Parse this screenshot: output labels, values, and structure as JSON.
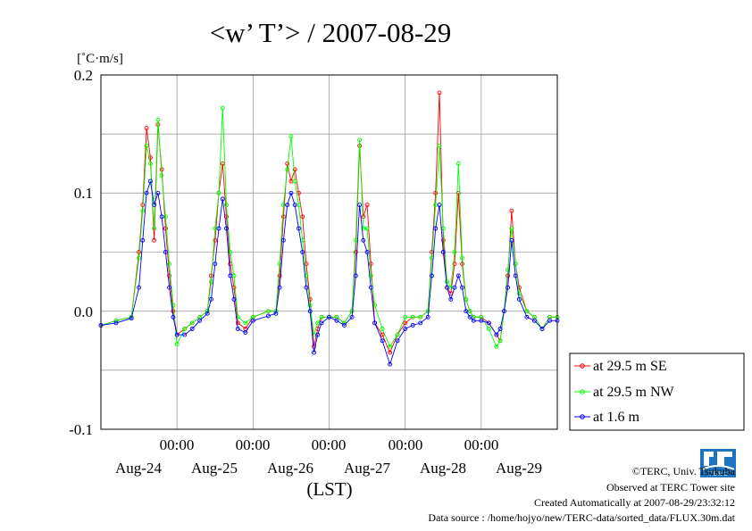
{
  "chart_data": {
    "type": "line",
    "title": "<w’ T’> / 2007-08-29",
    "unit_label": "[˚C·m/s]",
    "xlabel": "(LST)",
    "ylim": [
      -0.1,
      0.2
    ],
    "y_ticks": [
      "0.2",
      "0.1",
      "0.0",
      "-0.1"
    ],
    "y_tick_values": [
      0.2,
      0.1,
      0.0,
      -0.1
    ],
    "x_time_labels": [
      "00:00",
      "00:00",
      "00:00",
      "00:00",
      "00:00"
    ],
    "x_date_labels": [
      "Aug-24",
      "Aug-25",
      "Aug-26",
      "Aug-27",
      "Aug-28",
      "Aug-29"
    ],
    "x_range_days": [
      23.0,
      29.0
    ],
    "grid": true,
    "legend_position": "right",
    "series": [
      {
        "name": "at 29.5 m SE",
        "color": "#ff0000",
        "points": [
          [
            23.0,
            -0.012
          ],
          [
            23.2,
            -0.008
          ],
          [
            23.4,
            -0.005
          ],
          [
            23.5,
            0.05
          ],
          [
            23.55,
            0.09
          ],
          [
            23.6,
            0.155
          ],
          [
            23.65,
            0.13
          ],
          [
            23.7,
            0.06
          ],
          [
            23.75,
            0.158
          ],
          [
            23.8,
            0.12
          ],
          [
            23.85,
            0.07
          ],
          [
            23.9,
            0.03
          ],
          [
            23.95,
            0.0
          ],
          [
            24.0,
            -0.02
          ],
          [
            24.1,
            -0.015
          ],
          [
            24.2,
            -0.01
          ],
          [
            24.3,
            -0.005
          ],
          [
            24.4,
            0.0
          ],
          [
            24.45,
            0.03
          ],
          [
            24.5,
            0.06
          ],
          [
            24.55,
            0.1
          ],
          [
            24.6,
            0.125
          ],
          [
            24.65,
            0.08
          ],
          [
            24.7,
            0.04
          ],
          [
            24.75,
            0.02
          ],
          [
            24.8,
            -0.01
          ],
          [
            24.9,
            -0.015
          ],
          [
            25.0,
            -0.005
          ],
          [
            25.2,
            0.0
          ],
          [
            25.3,
            0.0
          ],
          [
            25.35,
            0.03
          ],
          [
            25.4,
            0.08
          ],
          [
            25.45,
            0.125
          ],
          [
            25.5,
            0.11
          ],
          [
            25.55,
            0.12
          ],
          [
            25.6,
            0.1
          ],
          [
            25.65,
            0.08
          ],
          [
            25.7,
            0.04
          ],
          [
            25.75,
            0.01
          ],
          [
            25.8,
            -0.03
          ],
          [
            25.85,
            -0.015
          ],
          [
            25.9,
            -0.005
          ],
          [
            26.0,
            -0.005
          ],
          [
            26.1,
            -0.005
          ],
          [
            26.2,
            -0.01
          ],
          [
            26.3,
            0.0
          ],
          [
            26.35,
            0.05
          ],
          [
            26.4,
            0.14
          ],
          [
            26.45,
            0.08
          ],
          [
            26.5,
            0.09
          ],
          [
            26.55,
            0.04
          ],
          [
            26.6,
            -0.01
          ],
          [
            26.7,
            -0.02
          ],
          [
            26.8,
            -0.035
          ],
          [
            26.9,
            -0.02
          ],
          [
            27.0,
            -0.01
          ],
          [
            27.1,
            -0.005
          ],
          [
            27.2,
            -0.005
          ],
          [
            27.3,
            0.0
          ],
          [
            27.35,
            0.05
          ],
          [
            27.4,
            0.1
          ],
          [
            27.45,
            0.185
          ],
          [
            27.5,
            0.06
          ],
          [
            27.55,
            0.02
          ],
          [
            27.6,
            0.015
          ],
          [
            27.65,
            0.04
          ],
          [
            27.7,
            0.1
          ],
          [
            27.75,
            0.04
          ],
          [
            27.8,
            0.01
          ],
          [
            27.85,
            0.0
          ],
          [
            27.9,
            -0.005
          ],
          [
            28.0,
            -0.005
          ],
          [
            28.1,
            -0.01
          ],
          [
            28.2,
            -0.02
          ],
          [
            28.25,
            -0.025
          ],
          [
            28.3,
            0.0
          ],
          [
            28.35,
            0.03
          ],
          [
            28.4,
            0.085
          ],
          [
            28.45,
            0.04
          ],
          [
            28.5,
            0.02
          ],
          [
            28.6,
            0.0
          ],
          [
            28.7,
            -0.005
          ],
          [
            28.8,
            -0.015
          ],
          [
            28.9,
            -0.005
          ],
          [
            29.0,
            -0.005
          ]
        ]
      },
      {
        "name": "at 29.5 m NW",
        "color": "#00ff00",
        "points": [
          [
            23.0,
            -0.012
          ],
          [
            23.2,
            -0.008
          ],
          [
            23.4,
            -0.005
          ],
          [
            23.5,
            0.045
          ],
          [
            23.55,
            0.085
          ],
          [
            23.6,
            0.14
          ],
          [
            23.65,
            0.125
          ],
          [
            23.7,
            0.07
          ],
          [
            23.75,
            0.162
          ],
          [
            23.8,
            0.115
          ],
          [
            23.85,
            0.08
          ],
          [
            23.9,
            0.04
          ],
          [
            23.95,
            0.005
          ],
          [
            24.0,
            -0.028
          ],
          [
            24.1,
            -0.015
          ],
          [
            24.2,
            -0.01
          ],
          [
            24.3,
            -0.005
          ],
          [
            24.4,
            0.0
          ],
          [
            24.45,
            0.025
          ],
          [
            24.5,
            0.07
          ],
          [
            24.55,
            0.1
          ],
          [
            24.6,
            0.172
          ],
          [
            24.65,
            0.09
          ],
          [
            24.7,
            0.05
          ],
          [
            24.75,
            0.03
          ],
          [
            24.8,
            -0.005
          ],
          [
            24.9,
            -0.01
          ],
          [
            25.0,
            -0.005
          ],
          [
            25.2,
            0.0
          ],
          [
            25.3,
            0.0
          ],
          [
            25.35,
            0.04
          ],
          [
            25.4,
            0.09
          ],
          [
            25.45,
            0.12
          ],
          [
            25.5,
            0.148
          ],
          [
            25.55,
            0.11
          ],
          [
            25.6,
            0.09
          ],
          [
            25.65,
            0.06
          ],
          [
            25.7,
            0.03
          ],
          [
            25.75,
            0.005
          ],
          [
            25.8,
            -0.02
          ],
          [
            25.85,
            -0.01
          ],
          [
            25.9,
            -0.005
          ],
          [
            26.0,
            -0.005
          ],
          [
            26.1,
            -0.005
          ],
          [
            26.2,
            -0.01
          ],
          [
            26.3,
            0.0
          ],
          [
            26.35,
            0.06
          ],
          [
            26.4,
            0.145
          ],
          [
            26.45,
            0.07
          ],
          [
            26.5,
            0.07
          ],
          [
            26.55,
            0.03
          ],
          [
            26.6,
            0.005
          ],
          [
            26.7,
            -0.015
          ],
          [
            26.8,
            -0.03
          ],
          [
            26.9,
            -0.02
          ],
          [
            27.0,
            -0.005
          ],
          [
            27.1,
            -0.005
          ],
          [
            27.2,
            -0.005
          ],
          [
            27.3,
            0.0
          ],
          [
            27.35,
            0.045
          ],
          [
            27.4,
            0.09
          ],
          [
            27.45,
            0.14
          ],
          [
            27.5,
            0.07
          ],
          [
            27.55,
            0.025
          ],
          [
            27.6,
            0.02
          ],
          [
            27.65,
            0.05
          ],
          [
            27.7,
            0.125
          ],
          [
            27.75,
            0.045
          ],
          [
            27.8,
            0.01
          ],
          [
            27.85,
            0.0
          ],
          [
            27.9,
            -0.005
          ],
          [
            28.0,
            -0.005
          ],
          [
            28.1,
            -0.015
          ],
          [
            28.2,
            -0.03
          ],
          [
            28.25,
            -0.025
          ],
          [
            28.3,
            0.0
          ],
          [
            28.35,
            0.035
          ],
          [
            28.4,
            0.07
          ],
          [
            28.45,
            0.04
          ],
          [
            28.5,
            0.015
          ],
          [
            28.6,
            0.0
          ],
          [
            28.7,
            -0.005
          ],
          [
            28.8,
            -0.015
          ],
          [
            28.9,
            -0.005
          ],
          [
            29.0,
            -0.005
          ]
        ]
      },
      {
        "name": "at 1.6 m",
        "color": "#0000ff",
        "points": [
          [
            23.0,
            -0.012
          ],
          [
            23.2,
            -0.01
          ],
          [
            23.4,
            -0.006
          ],
          [
            23.5,
            0.02
          ],
          [
            23.55,
            0.06
          ],
          [
            23.6,
            0.1
          ],
          [
            23.65,
            0.11
          ],
          [
            23.7,
            0.09
          ],
          [
            23.75,
            0.1
          ],
          [
            23.8,
            0.08
          ],
          [
            23.85,
            0.05
          ],
          [
            23.9,
            0.02
          ],
          [
            23.95,
            -0.005
          ],
          [
            24.0,
            -0.02
          ],
          [
            24.1,
            -0.02
          ],
          [
            24.2,
            -0.015
          ],
          [
            24.3,
            -0.008
          ],
          [
            24.4,
            -0.002
          ],
          [
            24.45,
            0.01
          ],
          [
            24.5,
            0.04
          ],
          [
            24.55,
            0.07
          ],
          [
            24.6,
            0.095
          ],
          [
            24.65,
            0.07
          ],
          [
            24.7,
            0.03
          ],
          [
            24.75,
            0.01
          ],
          [
            24.8,
            -0.015
          ],
          [
            24.9,
            -0.018
          ],
          [
            25.0,
            -0.008
          ],
          [
            25.2,
            -0.004
          ],
          [
            25.3,
            -0.002
          ],
          [
            25.35,
            0.02
          ],
          [
            25.4,
            0.06
          ],
          [
            25.45,
            0.09
          ],
          [
            25.5,
            0.1
          ],
          [
            25.55,
            0.09
          ],
          [
            25.6,
            0.07
          ],
          [
            25.65,
            0.05
          ],
          [
            25.7,
            0.02
          ],
          [
            25.75,
            0.0
          ],
          [
            25.8,
            -0.035
          ],
          [
            25.85,
            -0.02
          ],
          [
            25.9,
            -0.01
          ],
          [
            26.0,
            -0.005
          ],
          [
            26.1,
            -0.008
          ],
          [
            26.2,
            -0.012
          ],
          [
            26.3,
            -0.005
          ],
          [
            26.35,
            0.03
          ],
          [
            26.4,
            0.09
          ],
          [
            26.45,
            0.06
          ],
          [
            26.5,
            0.05
          ],
          [
            26.55,
            0.02
          ],
          [
            26.6,
            -0.01
          ],
          [
            26.7,
            -0.025
          ],
          [
            26.8,
            -0.045
          ],
          [
            26.9,
            -0.025
          ],
          [
            27.0,
            -0.015
          ],
          [
            27.1,
            -0.012
          ],
          [
            27.2,
            -0.01
          ],
          [
            27.3,
            -0.005
          ],
          [
            27.35,
            0.03
          ],
          [
            27.4,
            0.07
          ],
          [
            27.45,
            0.09
          ],
          [
            27.5,
            0.05
          ],
          [
            27.55,
            0.02
          ],
          [
            27.6,
            0.01
          ],
          [
            27.65,
            0.02
          ],
          [
            27.7,
            0.03
          ],
          [
            27.75,
            0.02
          ],
          [
            27.8,
            0.0
          ],
          [
            27.85,
            -0.005
          ],
          [
            27.9,
            -0.008
          ],
          [
            28.0,
            -0.008
          ],
          [
            28.1,
            -0.01
          ],
          [
            28.2,
            -0.02
          ],
          [
            28.25,
            -0.015
          ],
          [
            28.3,
            0.0
          ],
          [
            28.35,
            0.02
          ],
          [
            28.4,
            0.06
          ],
          [
            28.45,
            0.03
          ],
          [
            28.5,
            0.01
          ],
          [
            28.6,
            -0.005
          ],
          [
            28.7,
            -0.008
          ],
          [
            28.8,
            -0.015
          ],
          [
            28.9,
            -0.008
          ],
          [
            29.0,
            -0.008
          ]
        ]
      }
    ]
  },
  "footer": {
    "copyright": "©TERC, Univ. Tsukuba",
    "observed": "Observed at TERC Tower site",
    "created": "Created Automatically at 2007-08-29/23:32:12",
    "source": "Data source : /home/hojyo/new/TERC-data/sorted_data/FLUX.30m.dat"
  },
  "logo": {
    "text": "T E R C",
    "color": "#1e73be"
  }
}
